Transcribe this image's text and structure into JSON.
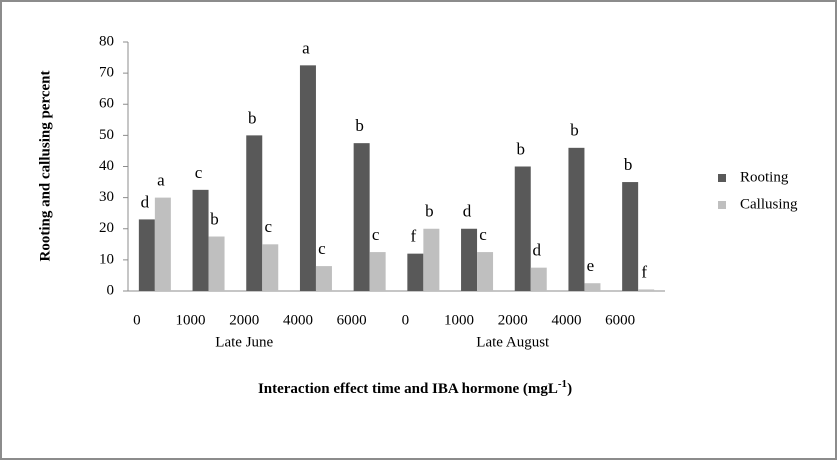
{
  "chart_data": {
    "type": "bar",
    "ylabel": "Rooting and callusing percent",
    "xlabel": "Interaction effect time and IBA hormone (mgL",
    "xlabel_sup": "-1",
    "xlabel_end": ")",
    "categories": [
      "0",
      "1000",
      "2000",
      "4000",
      "6000",
      "0",
      "1000",
      "2000",
      "4000",
      "6000"
    ],
    "groups": [
      "Late June",
      "Late August"
    ],
    "series": [
      {
        "name": "Rooting",
        "color": "#595959",
        "values": [
          23,
          32.5,
          50,
          72.5,
          47.5,
          12,
          20,
          40,
          46,
          35
        ],
        "letters": [
          "d",
          "c",
          "b",
          "a",
          "b",
          "f",
          "d",
          "b",
          "b",
          "b"
        ]
      },
      {
        "name": "Callusing",
        "color": "#bfbfbf",
        "values": [
          30,
          17.5,
          15,
          8,
          12.5,
          20,
          12.5,
          7.5,
          2.5,
          0.5
        ],
        "letters": [
          "a",
          "b",
          "c",
          "c",
          "c",
          "b",
          "c",
          "d",
          "e",
          "f"
        ]
      }
    ],
    "ylim": [
      0,
      80
    ],
    "yticks": [
      0,
      10,
      20,
      30,
      40,
      50,
      60,
      70,
      80
    ],
    "legend": "right"
  }
}
